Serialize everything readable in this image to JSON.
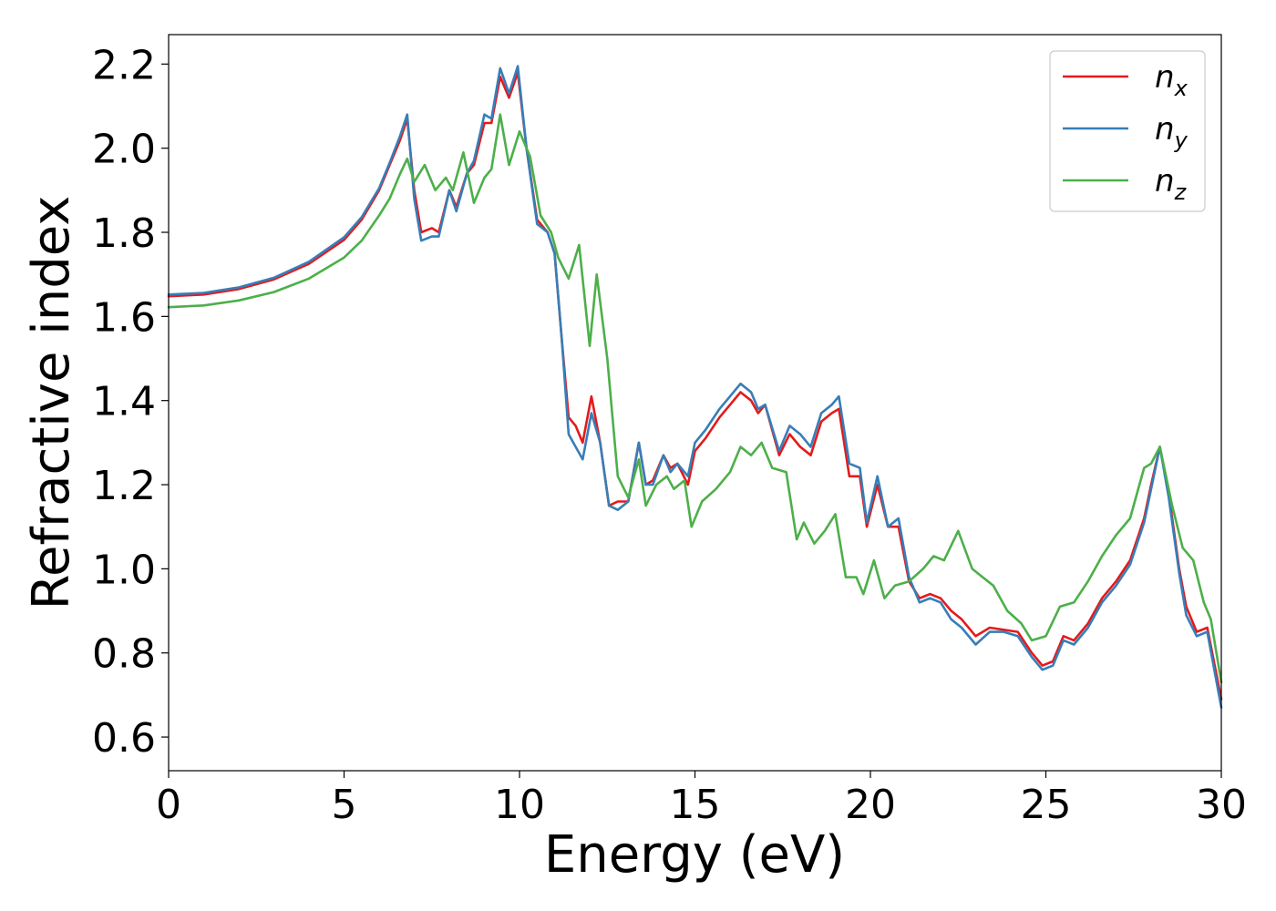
{
  "chart_data": {
    "type": "line",
    "title": "",
    "xlabel": "Energy (eV)",
    "ylabel": "Refractive index",
    "xlim": [
      0,
      30
    ],
    "ylim": [
      0.52,
      2.27
    ],
    "xticks": [
      "0",
      "5",
      "10",
      "15",
      "20",
      "25",
      "30"
    ],
    "xtick_values": [
      0,
      5,
      10,
      15,
      20,
      25,
      30
    ],
    "yticks": [
      "0.6",
      "0.8",
      "1.0",
      "1.2",
      "1.4",
      "1.6",
      "1.8",
      "2.0",
      "2.2"
    ],
    "ytick_values": [
      0.6,
      0.8,
      1.0,
      1.2,
      1.4,
      1.6,
      1.8,
      2.0,
      2.2
    ],
    "grid": false,
    "legend_position": "top-right",
    "series": [
      {
        "name": "n",
        "subscript": "x",
        "color": "#e41a1c",
        "points": [
          [
            0,
            1.648
          ],
          [
            1,
            1.652
          ],
          [
            2,
            1.665
          ],
          [
            3,
            1.688
          ],
          [
            4,
            1.725
          ],
          [
            5,
            1.782
          ],
          [
            5.5,
            1.83
          ],
          [
            6,
            1.9
          ],
          [
            6.3,
            1.96
          ],
          [
            6.6,
            2.02
          ],
          [
            6.8,
            2.07
          ],
          [
            7,
            1.9
          ],
          [
            7.2,
            1.8
          ],
          [
            7.5,
            1.81
          ],
          [
            7.7,
            1.8
          ],
          [
            8,
            1.9
          ],
          [
            8.2,
            1.86
          ],
          [
            8.5,
            1.94
          ],
          [
            8.7,
            1.96
          ],
          [
            9,
            2.06
          ],
          [
            9.2,
            2.06
          ],
          [
            9.45,
            2.17
          ],
          [
            9.7,
            2.12
          ],
          [
            9.95,
            2.18
          ],
          [
            10.2,
            2.0
          ],
          [
            10.5,
            1.83
          ],
          [
            10.8,
            1.8
          ],
          [
            11,
            1.75
          ],
          [
            11.2,
            1.55
          ],
          [
            11.4,
            1.36
          ],
          [
            11.6,
            1.34
          ],
          [
            11.8,
            1.3
          ],
          [
            12.05,
            1.41
          ],
          [
            12.3,
            1.3
          ],
          [
            12.55,
            1.15
          ],
          [
            12.8,
            1.16
          ],
          [
            13.1,
            1.16
          ],
          [
            13.4,
            1.3
          ],
          [
            13.6,
            1.2
          ],
          [
            13.8,
            1.21
          ],
          [
            14.1,
            1.27
          ],
          [
            14.3,
            1.24
          ],
          [
            14.5,
            1.25
          ],
          [
            14.8,
            1.2
          ],
          [
            15,
            1.28
          ],
          [
            15.3,
            1.31
          ],
          [
            15.7,
            1.36
          ],
          [
            16,
            1.39
          ],
          [
            16.3,
            1.42
          ],
          [
            16.6,
            1.4
          ],
          [
            16.8,
            1.37
          ],
          [
            17,
            1.39
          ],
          [
            17.4,
            1.27
          ],
          [
            17.7,
            1.32
          ],
          [
            18,
            1.29
          ],
          [
            18.3,
            1.27
          ],
          [
            18.6,
            1.35
          ],
          [
            18.9,
            1.37
          ],
          [
            19.1,
            1.38
          ],
          [
            19.4,
            1.22
          ],
          [
            19.7,
            1.22
          ],
          [
            19.9,
            1.1
          ],
          [
            20.2,
            1.2
          ],
          [
            20.5,
            1.1
          ],
          [
            20.8,
            1.1
          ],
          [
            21.1,
            0.97
          ],
          [
            21.4,
            0.93
          ],
          [
            21.7,
            0.94
          ],
          [
            22,
            0.93
          ],
          [
            22.3,
            0.9
          ],
          [
            22.6,
            0.88
          ],
          [
            23,
            0.84
          ],
          [
            23.4,
            0.86
          ],
          [
            23.8,
            0.855
          ],
          [
            24.2,
            0.85
          ],
          [
            24.6,
            0.8
          ],
          [
            24.9,
            0.77
          ],
          [
            25.2,
            0.78
          ],
          [
            25.5,
            0.84
          ],
          [
            25.8,
            0.83
          ],
          [
            26.2,
            0.87
          ],
          [
            26.6,
            0.93
          ],
          [
            27,
            0.97
          ],
          [
            27.4,
            1.02
          ],
          [
            27.8,
            1.12
          ],
          [
            28.0,
            1.2
          ],
          [
            28.25,
            1.29
          ],
          [
            28.5,
            1.18
          ],
          [
            28.8,
            1.0
          ],
          [
            29.0,
            0.91
          ],
          [
            29.3,
            0.85
          ],
          [
            29.6,
            0.86
          ],
          [
            30,
            0.69
          ]
        ]
      },
      {
        "name": "n",
        "subscript": "y",
        "color": "#377eb8",
        "points": [
          [
            0,
            1.652
          ],
          [
            1,
            1.656
          ],
          [
            2,
            1.669
          ],
          [
            3,
            1.692
          ],
          [
            4,
            1.73
          ],
          [
            5,
            1.788
          ],
          [
            5.5,
            1.836
          ],
          [
            6,
            1.905
          ],
          [
            6.3,
            1.965
          ],
          [
            6.6,
            2.03
          ],
          [
            6.8,
            2.08
          ],
          [
            7,
            1.88
          ],
          [
            7.2,
            1.78
          ],
          [
            7.5,
            1.79
          ],
          [
            7.7,
            1.79
          ],
          [
            8,
            1.9
          ],
          [
            8.2,
            1.85
          ],
          [
            8.5,
            1.94
          ],
          [
            8.7,
            1.97
          ],
          [
            9,
            2.08
          ],
          [
            9.2,
            2.07
          ],
          [
            9.45,
            2.19
          ],
          [
            9.7,
            2.13
          ],
          [
            9.95,
            2.195
          ],
          [
            10.2,
            2.0
          ],
          [
            10.5,
            1.82
          ],
          [
            10.8,
            1.8
          ],
          [
            11,
            1.75
          ],
          [
            11.2,
            1.55
          ],
          [
            11.4,
            1.32
          ],
          [
            11.6,
            1.29
          ],
          [
            11.8,
            1.26
          ],
          [
            12.05,
            1.37
          ],
          [
            12.3,
            1.3
          ],
          [
            12.55,
            1.15
          ],
          [
            12.8,
            1.14
          ],
          [
            13.1,
            1.16
          ],
          [
            13.4,
            1.3
          ],
          [
            13.6,
            1.2
          ],
          [
            13.8,
            1.2
          ],
          [
            14.1,
            1.27
          ],
          [
            14.3,
            1.23
          ],
          [
            14.5,
            1.25
          ],
          [
            14.8,
            1.22
          ],
          [
            15,
            1.3
          ],
          [
            15.3,
            1.33
          ],
          [
            15.7,
            1.38
          ],
          [
            16,
            1.41
          ],
          [
            16.3,
            1.44
          ],
          [
            16.6,
            1.42
          ],
          [
            16.8,
            1.38
          ],
          [
            17,
            1.39
          ],
          [
            17.4,
            1.28
          ],
          [
            17.7,
            1.34
          ],
          [
            18,
            1.32
          ],
          [
            18.3,
            1.29
          ],
          [
            18.6,
            1.37
          ],
          [
            18.9,
            1.39
          ],
          [
            19.1,
            1.41
          ],
          [
            19.4,
            1.25
          ],
          [
            19.7,
            1.24
          ],
          [
            19.9,
            1.11
          ],
          [
            20.2,
            1.22
          ],
          [
            20.5,
            1.1
          ],
          [
            20.8,
            1.12
          ],
          [
            21.1,
            0.98
          ],
          [
            21.4,
            0.92
          ],
          [
            21.7,
            0.93
          ],
          [
            22,
            0.92
          ],
          [
            22.3,
            0.88
          ],
          [
            22.6,
            0.86
          ],
          [
            23,
            0.82
          ],
          [
            23.4,
            0.85
          ],
          [
            23.8,
            0.85
          ],
          [
            24.2,
            0.84
          ],
          [
            24.6,
            0.79
          ],
          [
            24.9,
            0.76
          ],
          [
            25.2,
            0.77
          ],
          [
            25.5,
            0.83
          ],
          [
            25.8,
            0.82
          ],
          [
            26.2,
            0.86
          ],
          [
            26.6,
            0.92
          ],
          [
            27,
            0.96
          ],
          [
            27.4,
            1.01
          ],
          [
            27.8,
            1.11
          ],
          [
            28.0,
            1.19
          ],
          [
            28.25,
            1.29
          ],
          [
            28.5,
            1.17
          ],
          [
            28.8,
            0.99
          ],
          [
            29.0,
            0.89
          ],
          [
            29.3,
            0.84
          ],
          [
            29.6,
            0.85
          ],
          [
            30,
            0.67
          ]
        ]
      },
      {
        "name": "n",
        "subscript": "z",
        "color": "#4daf4a",
        "points": [
          [
            0,
            1.622
          ],
          [
            1,
            1.626
          ],
          [
            2,
            1.638
          ],
          [
            3,
            1.658
          ],
          [
            4,
            1.69
          ],
          [
            5,
            1.74
          ],
          [
            5.5,
            1.78
          ],
          [
            6,
            1.84
          ],
          [
            6.3,
            1.88
          ],
          [
            6.6,
            1.94
          ],
          [
            6.8,
            1.975
          ],
          [
            7,
            1.92
          ],
          [
            7.3,
            1.96
          ],
          [
            7.6,
            1.9
          ],
          [
            7.9,
            1.93
          ],
          [
            8.1,
            1.9
          ],
          [
            8.4,
            1.99
          ],
          [
            8.7,
            1.87
          ],
          [
            9,
            1.93
          ],
          [
            9.2,
            1.95
          ],
          [
            9.45,
            2.08
          ],
          [
            9.7,
            1.96
          ],
          [
            10,
            2.04
          ],
          [
            10.3,
            1.98
          ],
          [
            10.6,
            1.84
          ],
          [
            10.9,
            1.8
          ],
          [
            11.1,
            1.74
          ],
          [
            11.4,
            1.69
          ],
          [
            11.7,
            1.77
          ],
          [
            12.0,
            1.53
          ],
          [
            12.2,
            1.7
          ],
          [
            12.5,
            1.5
          ],
          [
            12.8,
            1.22
          ],
          [
            13.1,
            1.17
          ],
          [
            13.4,
            1.26
          ],
          [
            13.6,
            1.15
          ],
          [
            13.9,
            1.2
          ],
          [
            14.2,
            1.22
          ],
          [
            14.4,
            1.19
          ],
          [
            14.7,
            1.21
          ],
          [
            14.9,
            1.1
          ],
          [
            15.2,
            1.16
          ],
          [
            15.6,
            1.19
          ],
          [
            16,
            1.23
          ],
          [
            16.3,
            1.29
          ],
          [
            16.6,
            1.27
          ],
          [
            16.9,
            1.3
          ],
          [
            17.2,
            1.24
          ],
          [
            17.6,
            1.23
          ],
          [
            17.9,
            1.07
          ],
          [
            18.1,
            1.11
          ],
          [
            18.4,
            1.06
          ],
          [
            18.7,
            1.09
          ],
          [
            19.0,
            1.13
          ],
          [
            19.3,
            0.98
          ],
          [
            19.6,
            0.98
          ],
          [
            19.8,
            0.94
          ],
          [
            20.1,
            1.02
          ],
          [
            20.4,
            0.93
          ],
          [
            20.7,
            0.96
          ],
          [
            21.1,
            0.97
          ],
          [
            21.5,
            1.0
          ],
          [
            21.8,
            1.03
          ],
          [
            22.1,
            1.02
          ],
          [
            22.5,
            1.09
          ],
          [
            22.9,
            1.0
          ],
          [
            23.2,
            0.98
          ],
          [
            23.5,
            0.96
          ],
          [
            23.9,
            0.9
          ],
          [
            24.3,
            0.87
          ],
          [
            24.6,
            0.83
          ],
          [
            25,
            0.84
          ],
          [
            25.4,
            0.91
          ],
          [
            25.8,
            0.92
          ],
          [
            26.2,
            0.97
          ],
          [
            26.6,
            1.03
          ],
          [
            27,
            1.08
          ],
          [
            27.4,
            1.12
          ],
          [
            27.8,
            1.24
          ],
          [
            28.0,
            1.25
          ],
          [
            28.25,
            1.29
          ],
          [
            28.6,
            1.15
          ],
          [
            28.9,
            1.05
          ],
          [
            29.2,
            1.02
          ],
          [
            29.5,
            0.92
          ],
          [
            29.7,
            0.88
          ],
          [
            30,
            0.73
          ]
        ]
      }
    ]
  }
}
